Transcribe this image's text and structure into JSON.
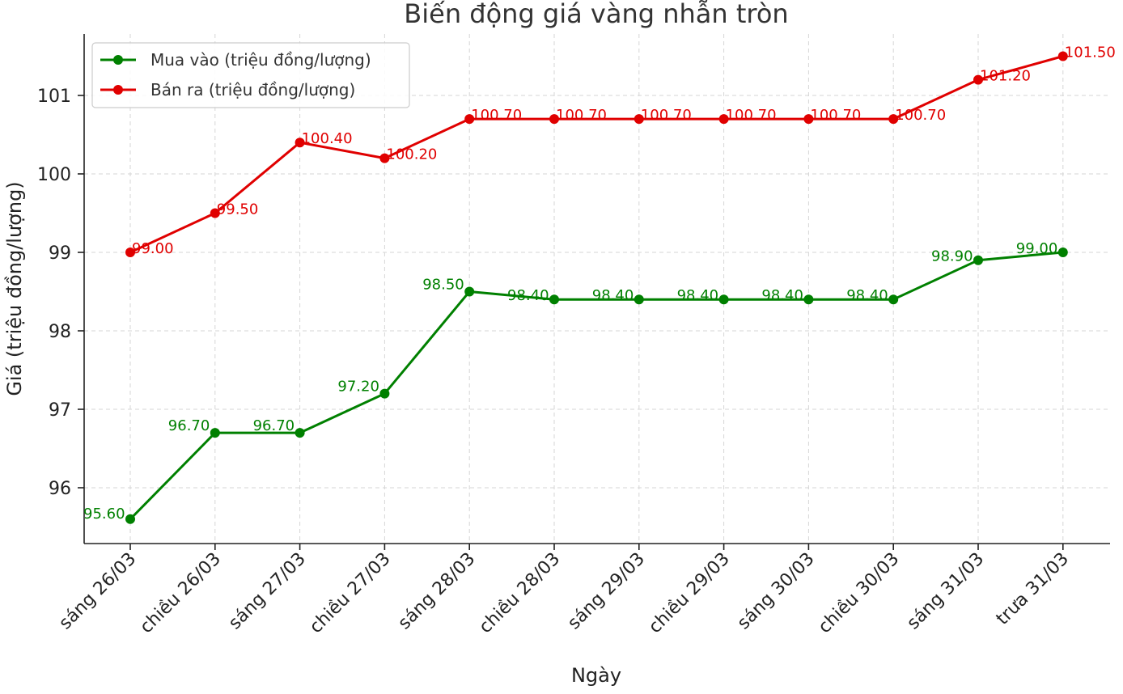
{
  "chart_data": {
    "type": "line",
    "title": "Biến động giá vàng nhẫn tròn",
    "xlabel": "Ngày",
    "ylabel": "Giá (triệu đồng/lượng)",
    "categories": [
      "sáng 26/03",
      "chiều 26/03",
      "sáng 27/03",
      "chiều 27/03",
      "sáng 28/03",
      "chiều 28/03",
      "sáng 29/03",
      "chiều 29/03",
      "sáng 30/03",
      "chiều 30/03",
      "sáng 31/03",
      "trưa 31/03"
    ],
    "yticks": [
      96,
      97,
      98,
      99,
      100,
      101
    ],
    "ylim": [
      95.3,
      101.8
    ],
    "grid": true,
    "legend_position": "top-left",
    "series": [
      {
        "name": "Mua vào (triệu đồng/lượng)",
        "color": "#008000",
        "values": [
          95.6,
          96.7,
          96.7,
          97.2,
          98.5,
          98.4,
          98.4,
          98.4,
          98.4,
          98.4,
          98.9,
          99.0
        ],
        "labels": [
          "95.60",
          "96.70",
          "96.70",
          "97.20",
          "98.50",
          "98.40",
          "98.40",
          "98.40",
          "98.40",
          "98.40",
          "98.90",
          "99.00"
        ]
      },
      {
        "name": "Bán ra (triệu đồng/lượng)",
        "color": "#e00000",
        "values": [
          99.0,
          99.5,
          100.4,
          100.2,
          100.7,
          100.7,
          100.7,
          100.7,
          100.7,
          100.7,
          101.2,
          101.5
        ],
        "labels": [
          "99.00",
          "99.50",
          "100.40",
          "100.20",
          "100.70",
          "100.70",
          "100.70",
          "100.70",
          "100.70",
          "100.70",
          "101.20",
          "101.50"
        ]
      }
    ]
  }
}
